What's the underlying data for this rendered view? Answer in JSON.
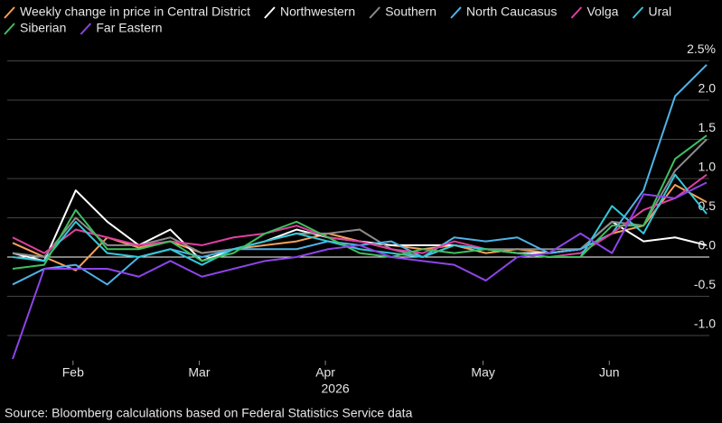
{
  "chart_data": {
    "type": "line",
    "legend": "top-left",
    "categories": [
      null,
      null,
      "Feb",
      null,
      null,
      null,
      "Mar",
      null,
      null,
      null,
      "Apr",
      null,
      null,
      null,
      null,
      "May",
      null,
      null,
      null,
      "Jun",
      null,
      null,
      null
    ],
    "xlabel": "2026",
    "series": [
      {
        "name": "Weekly change in price in Central District",
        "color": "#f5a05a",
        "values": [
          0.18,
          0.0,
          -0.17,
          0.25,
          0.12,
          0.2,
          0.05,
          0.1,
          0.15,
          0.2,
          0.3,
          0.2,
          0.15,
          0.1,
          0.15,
          0.05,
          0.1,
          0.05,
          0.1,
          0.3,
          0.4,
          0.92,
          0.7
        ]
      },
      {
        "name": "Northwestern",
        "color": "#ffffff",
        "values": [
          0.05,
          -0.05,
          0.85,
          0.45,
          0.15,
          0.35,
          -0.05,
          0.1,
          0.2,
          0.35,
          0.25,
          0.2,
          0.15,
          0.15,
          0.15,
          0.1,
          0.05,
          0.05,
          0.1,
          0.45,
          0.2,
          0.25,
          0.15
        ]
      },
      {
        "name": "Southern",
        "color": "#8c8c8c",
        "values": [
          0.05,
          0.0,
          0.5,
          0.15,
          0.15,
          0.25,
          0.05,
          0.1,
          0.2,
          0.3,
          0.3,
          0.35,
          0.1,
          0.0,
          0.15,
          0.1,
          0.1,
          0.1,
          0.1,
          0.45,
          0.4,
          1.1,
          1.5
        ]
      },
      {
        "name": "North Caucasus",
        "color": "#4fb3e8",
        "values": [
          -0.35,
          -0.15,
          -0.1,
          -0.35,
          0.0,
          0.1,
          0.0,
          0.1,
          0.1,
          0.1,
          0.2,
          0.15,
          0.2,
          0.0,
          0.25,
          0.2,
          0.25,
          0.05,
          0.1,
          0.3,
          0.85,
          2.05,
          2.45
        ]
      },
      {
        "name": "Volga",
        "color": "#e040a0",
        "values": [
          0.25,
          0.05,
          0.35,
          0.25,
          0.15,
          0.2,
          0.15,
          0.25,
          0.3,
          0.4,
          0.25,
          0.2,
          0.1,
          0.05,
          0.2,
          0.1,
          0.05,
          0.0,
          0.05,
          0.3,
          0.6,
          0.75,
          1.05
        ]
      },
      {
        "name": "Ural",
        "color": "#34c8d8",
        "values": [
          0.0,
          -0.05,
          0.45,
          0.05,
          0.0,
          0.1,
          -0.1,
          0.1,
          0.2,
          0.3,
          0.2,
          0.1,
          0.05,
          0.0,
          0.15,
          0.1,
          0.05,
          0.0,
          0.0,
          0.65,
          0.3,
          1.05,
          0.55
        ]
      },
      {
        "name": "Siberian",
        "color": "#3fbf5f",
        "values": [
          -0.15,
          -0.1,
          0.6,
          0.1,
          0.1,
          0.2,
          -0.05,
          0.05,
          0.3,
          0.45,
          0.25,
          0.05,
          0.0,
          0.1,
          0.05,
          0.1,
          0.05,
          0.0,
          0.0,
          0.4,
          0.4,
          1.25,
          1.55
        ]
      },
      {
        "name": "Far Eastern",
        "color": "#8e44e8",
        "values": [
          -1.3,
          -0.15,
          -0.15,
          -0.15,
          -0.25,
          -0.05,
          -0.25,
          -0.15,
          -0.05,
          0.0,
          0.1,
          0.15,
          0.0,
          -0.05,
          -0.1,
          -0.3,
          0.0,
          0.05,
          0.3,
          0.05,
          0.8,
          0.75,
          0.95
        ]
      }
    ],
    "ylim": [
      -1.32,
      2.6
    ],
    "yticks": [
      {
        "value": 2.5,
        "label": "2.5%"
      },
      {
        "value": 2,
        "label": "2.0"
      },
      1.5,
      {
        "value": 1,
        "label": "1.0"
      },
      0.5,
      {
        "value": 0,
        "label": "0.0"
      },
      -0.5,
      {
        "value": -1,
        "label": "-1.0"
      }
    ],
    "grid": true,
    "source": "Source: Bloomberg calculations based on Federal Statistics Service data"
  }
}
